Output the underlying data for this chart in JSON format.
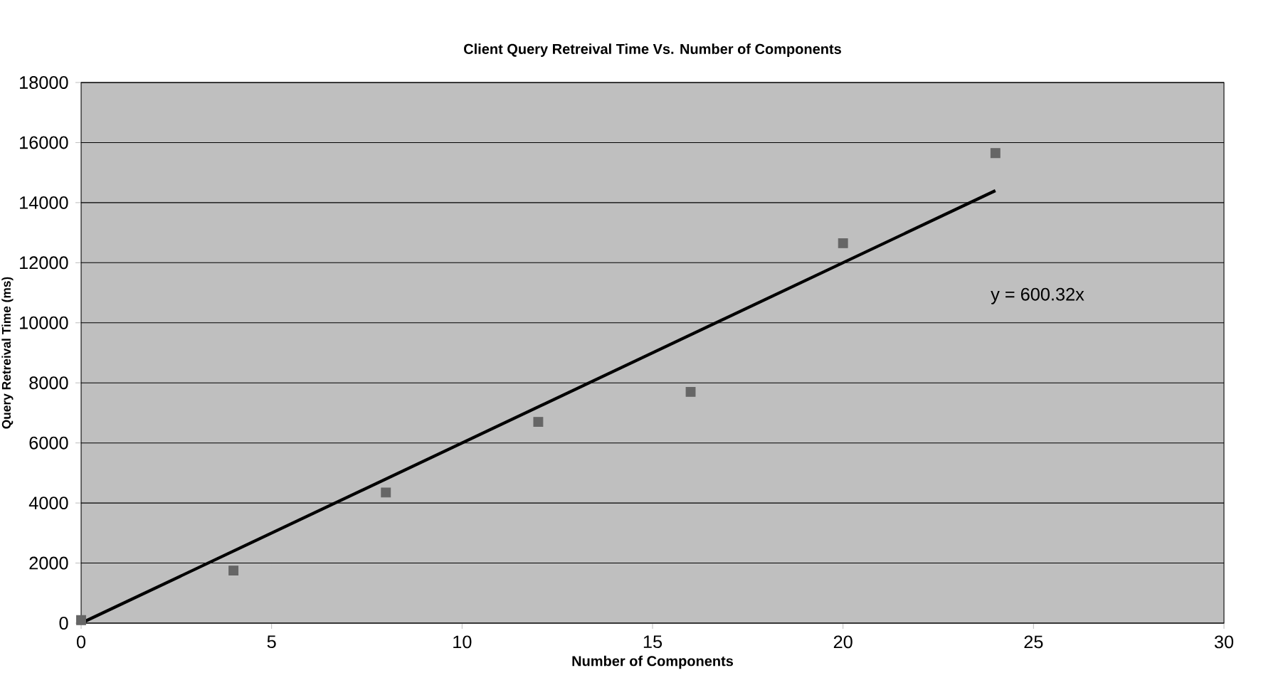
{
  "chart_data": {
    "type": "scatter",
    "title": "Client Query Retreival Time Vs. Number of Components",
    "xlabel": "Number of Components",
    "ylabel": "Query Retreival Time (ms)",
    "series": [
      {
        "color": "#666666",
        "marker": "square",
        "x": [
          0,
          4,
          8,
          12,
          16,
          20,
          24
        ],
        "values": [
          100,
          1750,
          4350,
          6700,
          7700,
          12650,
          15650
        ]
      },
      {
        "type": "line",
        "color": "#000000",
        "marker": "none",
        "line_style": "solid",
        "x": [
          0,
          24
        ],
        "values": [
          0,
          14400
        ]
      }
    ],
    "annotations": [
      "y = 600.32x"
    ],
    "xlim": [
      0,
      30
    ],
    "xticks": [
      0,
      5,
      10,
      15,
      20,
      25,
      30
    ],
    "ylim": [
      0,
      18000
    ],
    "yticks": [
      0,
      2000,
      4000,
      6000,
      8000,
      10000,
      12000,
      14000,
      16000,
      18000
    ],
    "grid": "y"
  }
}
